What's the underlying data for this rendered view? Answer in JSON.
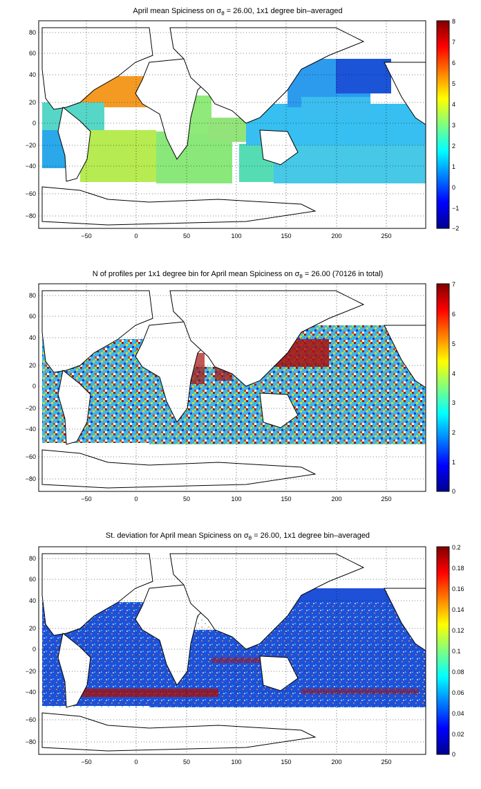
{
  "figure": {
    "panels": [
      {
        "id": "mean",
        "title_pre": "April mean Spiciness on σ",
        "title_sub": "θ",
        "title_post": " = 26.00, 1x1 degree bin–averaged",
        "colorbar_ticks": [
          "8",
          "7",
          "6",
          "5",
          "4",
          "3",
          "2",
          "1",
          "0",
          "−1",
          "−2"
        ],
        "colorbar_range": [
          -2,
          8
        ]
      },
      {
        "id": "count",
        "title_pre": "N of profiles per 1x1 degree bin for April mean Spiciness on σ",
        "title_sub": "θ",
        "title_post": " = 26.00 (70126 in total)",
        "colorbar_ticks": [
          "7",
          "6",
          "5",
          "4",
          "3",
          "2",
          "1",
          "0"
        ],
        "colorbar_range": [
          0,
          7
        ]
      },
      {
        "id": "std",
        "title_pre": "St. deviation for April mean Spiciness on σ",
        "title_sub": "θ",
        "title_post": " = 26.00, 1x1 degree bin–averaged",
        "colorbar_ticks": [
          "0.2",
          "0.18",
          "0.16",
          "0.14",
          "0.12",
          "0.1",
          "0.08",
          "0.06",
          "0.04",
          "0.02",
          "0"
        ],
        "colorbar_range": [
          0,
          0.2
        ]
      }
    ],
    "x_ticks": [
      "−50",
      "0",
      "50",
      "100",
      "150",
      "200",
      "250"
    ],
    "y_ticks": [
      "80",
      "60",
      "40",
      "20",
      "0",
      "−20",
      "−40",
      "−60",
      "−80"
    ],
    "x_range": [
      -95,
      292
    ],
    "y_range": [
      -90,
      90
    ],
    "grid": "dotted",
    "colormap": "jet"
  }
}
